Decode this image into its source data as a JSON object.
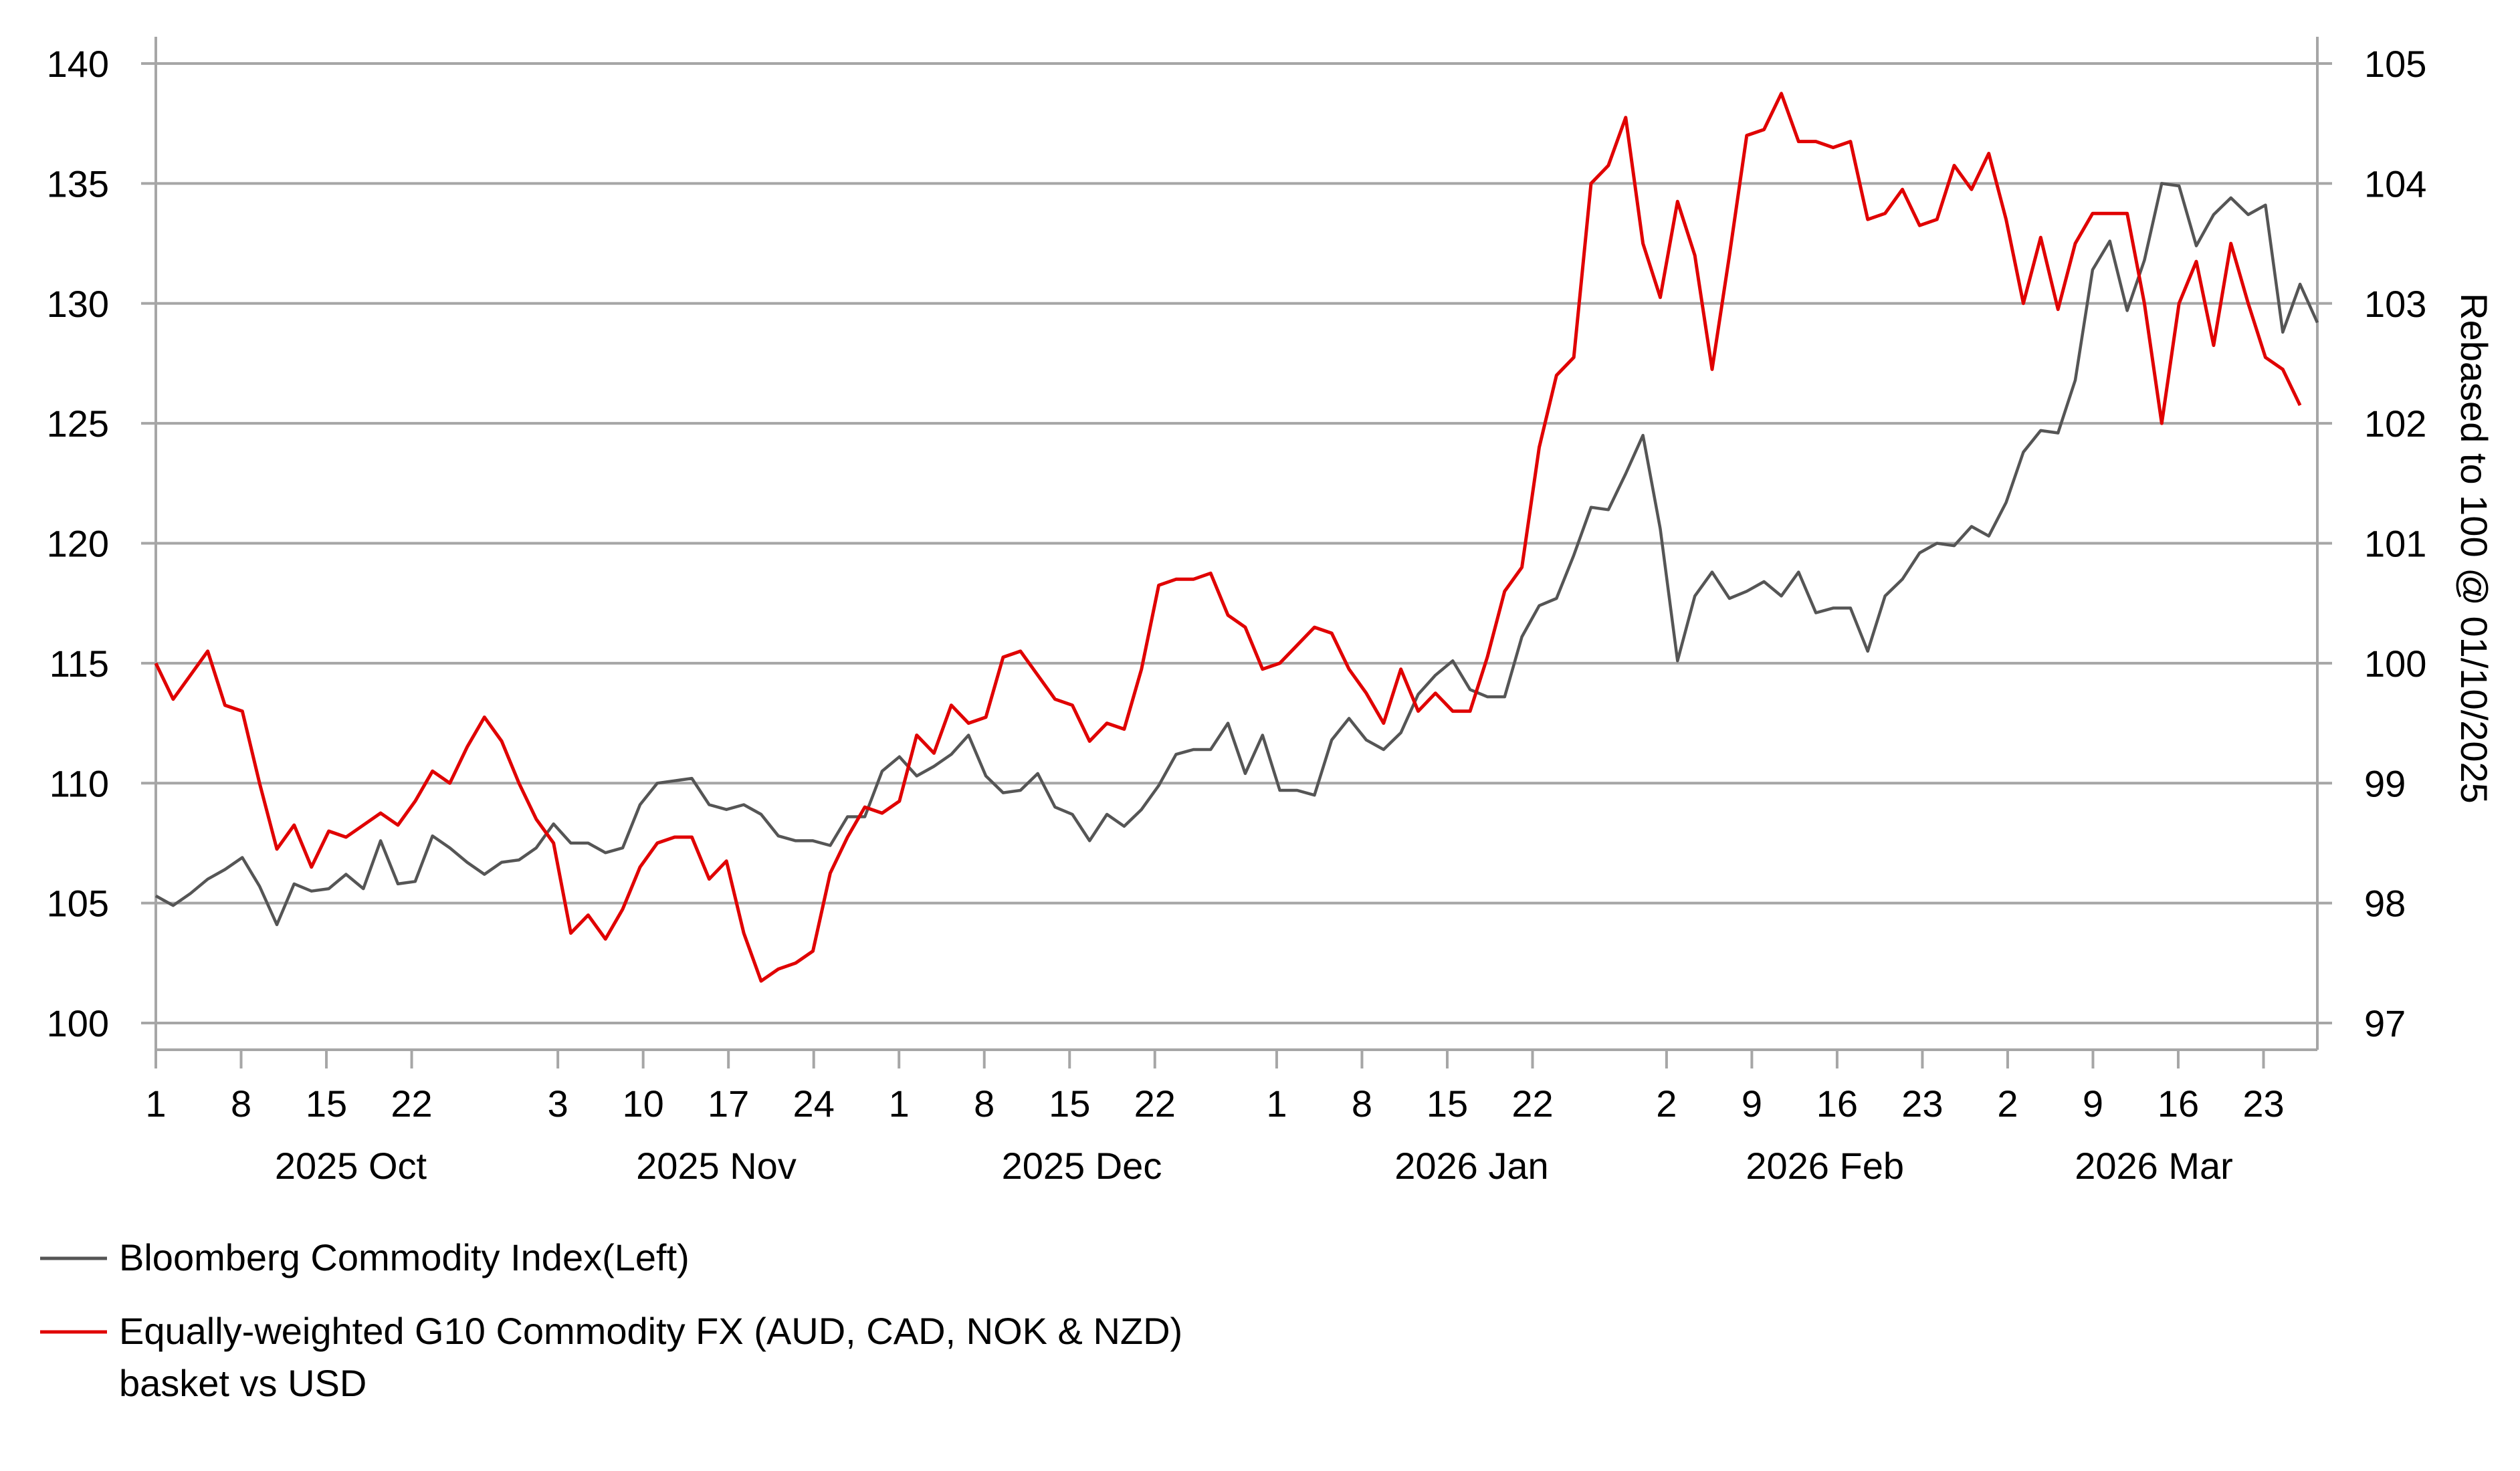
{
  "chart_data": {
    "type": "line",
    "title": "",
    "x_range": [
      "2025-10-01",
      "2026-03-26"
    ],
    "y_left": {
      "min": 100,
      "max": 140,
      "ticks": [
        "140",
        "135",
        "130",
        "125",
        "120",
        "115",
        "110",
        "105",
        "100"
      ],
      "grid": true
    },
    "y_right": {
      "label": "Rebased to 100 @ 01/10/2025",
      "min": 97,
      "max": 105,
      "ticks": [
        "105",
        "104",
        "103",
        "102",
        "101",
        "100",
        "99",
        "98",
        "97"
      ]
    },
    "x_ticks": [
      {
        "label": "1",
        "day": 0
      },
      {
        "label": "8",
        "day": 7
      },
      {
        "label": "15",
        "day": 14
      },
      {
        "label": "22",
        "day": 21
      },
      {
        "label": "3",
        "day": 33
      },
      {
        "label": "10",
        "day": 40
      },
      {
        "label": "17",
        "day": 47
      },
      {
        "label": "24",
        "day": 54
      },
      {
        "label": "1",
        "day": 61
      },
      {
        "label": "8",
        "day": 68
      },
      {
        "label": "15",
        "day": 75
      },
      {
        "label": "22",
        "day": 82
      },
      {
        "label": "1",
        "day": 92
      },
      {
        "label": "8",
        "day": 99
      },
      {
        "label": "15",
        "day": 106
      },
      {
        "label": "22",
        "day": 113
      },
      {
        "label": "2",
        "day": 124
      },
      {
        "label": "9",
        "day": 131
      },
      {
        "label": "16",
        "day": 138
      },
      {
        "label": "23",
        "day": 145
      },
      {
        "label": "2",
        "day": 152
      },
      {
        "label": "9",
        "day": 159
      },
      {
        "label": "16",
        "day": 166
      },
      {
        "label": "23",
        "day": 173
      }
    ],
    "months": [
      {
        "label": "2025 Oct",
        "center_day": 16
      },
      {
        "label": "2025 Nov",
        "center_day": 46
      },
      {
        "label": "2025 Dec",
        "center_day": 76
      },
      {
        "label": "2026 Jan",
        "center_day": 108
      },
      {
        "label": "2026 Feb",
        "center_day": 137
      },
      {
        "label": "2026 Mar",
        "center_day": 164
      }
    ],
    "series": [
      {
        "name": "Bloomberg Commodity Index(Left)",
        "axis": "left",
        "color": "#555555",
        "points": [
          [
            0,
            105.3
          ],
          [
            2,
            104.9
          ],
          [
            4,
            105.4
          ],
          [
            6,
            106.0
          ],
          [
            8,
            106.4
          ],
          [
            10,
            106.9
          ],
          [
            12,
            105.7
          ],
          [
            14,
            104.1
          ],
          [
            16,
            105.8
          ],
          [
            18,
            105.5
          ],
          [
            20,
            105.6
          ],
          [
            22,
            106.2
          ],
          [
            24,
            105.6
          ],
          [
            26,
            107.6
          ],
          [
            28,
            105.8
          ],
          [
            30,
            105.9
          ],
          [
            32,
            107.8
          ],
          [
            34,
            107.3
          ],
          [
            36,
            106.7
          ],
          [
            38,
            106.2
          ],
          [
            40,
            106.7
          ],
          [
            42,
            106.8
          ],
          [
            44,
            107.3
          ],
          [
            46,
            108.3
          ],
          [
            48,
            107.5
          ],
          [
            50,
            107.5
          ],
          [
            52,
            107.1
          ],
          [
            54,
            107.3
          ],
          [
            56,
            109.1
          ],
          [
            58,
            110.0
          ],
          [
            60,
            110.1
          ],
          [
            62,
            110.2
          ],
          [
            64,
            109.1
          ],
          [
            66,
            108.9
          ],
          [
            68,
            109.1
          ],
          [
            70,
            108.7
          ],
          [
            72,
            107.8
          ],
          [
            74,
            107.6
          ],
          [
            76,
            107.6
          ],
          [
            78,
            107.4
          ],
          [
            80,
            108.6
          ],
          [
            82,
            108.6
          ],
          [
            84,
            110.5
          ],
          [
            86,
            111.1
          ],
          [
            88,
            110.3
          ],
          [
            90,
            110.7
          ],
          [
            92,
            111.2
          ],
          [
            94,
            112.0
          ],
          [
            96,
            110.3
          ],
          [
            98,
            109.6
          ],
          [
            100,
            109.7
          ],
          [
            102,
            110.4
          ],
          [
            104,
            109.0
          ],
          [
            106,
            108.7
          ],
          [
            108,
            107.6
          ],
          [
            110,
            108.7
          ],
          [
            112,
            108.2
          ],
          [
            114,
            108.9
          ],
          [
            116,
            109.9
          ],
          [
            118,
            111.2
          ],
          [
            120,
            111.4
          ],
          [
            122,
            111.4
          ],
          [
            124,
            112.5
          ],
          [
            126,
            110.4
          ],
          [
            128,
            112.0
          ],
          [
            130,
            109.7
          ],
          [
            132,
            109.7
          ],
          [
            134,
            109.5
          ],
          [
            136,
            111.8
          ],
          [
            138,
            112.7
          ],
          [
            140,
            111.8
          ],
          [
            142,
            111.4
          ],
          [
            144,
            112.1
          ],
          [
            146,
            113.7
          ],
          [
            148,
            114.5
          ],
          [
            150,
            115.1
          ],
          [
            152,
            113.9
          ],
          [
            154,
            113.6
          ],
          [
            156,
            113.6
          ],
          [
            158,
            116.1
          ],
          [
            160,
            117.4
          ],
          [
            162,
            117.7
          ],
          [
            164,
            119.5
          ],
          [
            166,
            121.5
          ],
          [
            168,
            121.4
          ],
          [
            170,
            122.9
          ],
          [
            172,
            124.5
          ],
          [
            174,
            120.6
          ],
          [
            176,
            115.1
          ],
          [
            178,
            117.8
          ],
          [
            180,
            118.8
          ],
          [
            182,
            117.7
          ],
          [
            184,
            118.0
          ],
          [
            186,
            118.4
          ],
          [
            188,
            117.8
          ],
          [
            190,
            118.8
          ],
          [
            192,
            117.1
          ],
          [
            194,
            117.3
          ],
          [
            196,
            117.3
          ],
          [
            198,
            115.5
          ],
          [
            200,
            117.8
          ],
          [
            202,
            118.5
          ],
          [
            204,
            119.6
          ],
          [
            206,
            120.0
          ],
          [
            208,
            119.9
          ],
          [
            210,
            120.7
          ],
          [
            212,
            120.3
          ],
          [
            214,
            121.7
          ],
          [
            216,
            123.8
          ],
          [
            218,
            124.7
          ],
          [
            220,
            124.6
          ],
          [
            222,
            126.8
          ],
          [
            224,
            131.4
          ],
          [
            226,
            132.6
          ],
          [
            228,
            129.7
          ],
          [
            230,
            131.8
          ],
          [
            232,
            135.0
          ],
          [
            234,
            134.9
          ],
          [
            236,
            132.4
          ],
          [
            238,
            133.7
          ],
          [
            240,
            134.4
          ],
          [
            242,
            133.7
          ],
          [
            244,
            134.1
          ],
          [
            246,
            128.8
          ],
          [
            248,
            130.8
          ],
          [
            250,
            129.2
          ]
        ]
      },
      {
        "name": "Equally-weighted G10 Commodity FX (AUD, CAD, NOK & NZD) basket vs USD",
        "axis": "right",
        "color": "#e00000",
        "points": [
          [
            0,
            100.0
          ],
          [
            2,
            99.7
          ],
          [
            4,
            99.9
          ],
          [
            6,
            100.1
          ],
          [
            8,
            99.65
          ],
          [
            10,
            99.6
          ],
          [
            12,
            99.0
          ],
          [
            14,
            98.45
          ],
          [
            16,
            98.65
          ],
          [
            18,
            98.3
          ],
          [
            20,
            98.6
          ],
          [
            22,
            98.55
          ],
          [
            24,
            98.65
          ],
          [
            26,
            98.75
          ],
          [
            28,
            98.65
          ],
          [
            30,
            98.85
          ],
          [
            32,
            99.1
          ],
          [
            34,
            99.0
          ],
          [
            36,
            99.3
          ],
          [
            38,
            99.55
          ],
          [
            40,
            99.35
          ],
          [
            42,
            99.0
          ],
          [
            44,
            98.7
          ],
          [
            46,
            98.5
          ],
          [
            48,
            97.75
          ],
          [
            50,
            97.9
          ],
          [
            52,
            97.7
          ],
          [
            54,
            97.95
          ],
          [
            56,
            98.3
          ],
          [
            58,
            98.5
          ],
          [
            60,
            98.55
          ],
          [
            62,
            98.55
          ],
          [
            64,
            98.2
          ],
          [
            66,
            98.35
          ],
          [
            68,
            97.75
          ],
          [
            70,
            97.35
          ],
          [
            72,
            97.45
          ],
          [
            74,
            97.5
          ],
          [
            76,
            97.6
          ],
          [
            78,
            98.25
          ],
          [
            80,
            98.55
          ],
          [
            82,
            98.8
          ],
          [
            84,
            98.75
          ],
          [
            86,
            98.85
          ],
          [
            88,
            99.4
          ],
          [
            90,
            99.25
          ],
          [
            92,
            99.65
          ],
          [
            94,
            99.5
          ],
          [
            96,
            99.55
          ],
          [
            98,
            100.05
          ],
          [
            100,
            100.1
          ],
          [
            102,
            99.9
          ],
          [
            104,
            99.7
          ],
          [
            106,
            99.65
          ],
          [
            108,
            99.35
          ],
          [
            110,
            99.5
          ],
          [
            112,
            99.45
          ],
          [
            114,
            99.95
          ],
          [
            116,
            100.65
          ],
          [
            118,
            100.7
          ],
          [
            120,
            100.7
          ],
          [
            122,
            100.75
          ],
          [
            124,
            100.4
          ],
          [
            126,
            100.3
          ],
          [
            128,
            99.95
          ],
          [
            130,
            100.0
          ],
          [
            132,
            100.15
          ],
          [
            134,
            100.3
          ],
          [
            136,
            100.25
          ],
          [
            138,
            99.95
          ],
          [
            140,
            99.75
          ],
          [
            142,
            99.5
          ],
          [
            144,
            99.95
          ],
          [
            146,
            99.6
          ],
          [
            148,
            99.75
          ],
          [
            150,
            99.6
          ],
          [
            152,
            99.6
          ],
          [
            154,
            100.05
          ],
          [
            156,
            100.6
          ],
          [
            158,
            100.8
          ],
          [
            160,
            101.8
          ],
          [
            162,
            102.4
          ],
          [
            164,
            102.55
          ],
          [
            166,
            104.0
          ],
          [
            168,
            104.15
          ],
          [
            170,
            104.55
          ],
          [
            172,
            103.5
          ],
          [
            174,
            103.05
          ],
          [
            176,
            103.85
          ],
          [
            178,
            103.4
          ],
          [
            180,
            102.45
          ],
          [
            182,
            103.4
          ],
          [
            184,
            104.4
          ],
          [
            186,
            104.45
          ],
          [
            188,
            104.75
          ],
          [
            190,
            104.35
          ],
          [
            192,
            104.35
          ],
          [
            194,
            104.3
          ],
          [
            196,
            104.35
          ],
          [
            198,
            103.7
          ],
          [
            200,
            103.75
          ],
          [
            202,
            103.95
          ],
          [
            204,
            103.65
          ],
          [
            206,
            103.7
          ],
          [
            208,
            104.15
          ],
          [
            210,
            103.95
          ],
          [
            212,
            104.25
          ],
          [
            214,
            103.7
          ],
          [
            216,
            103.0
          ],
          [
            218,
            103.55
          ],
          [
            220,
            102.95
          ],
          [
            222,
            103.5
          ],
          [
            224,
            103.75
          ],
          [
            226,
            103.75
          ],
          [
            228,
            103.75
          ],
          [
            230,
            103.0
          ],
          [
            232,
            102.0
          ],
          [
            234,
            103.0
          ],
          [
            236,
            103.35
          ],
          [
            238,
            102.65
          ],
          [
            240,
            103.5
          ],
          [
            242,
            103.0
          ],
          [
            244,
            102.55
          ],
          [
            246,
            102.45
          ],
          [
            248,
            102.15
          ]
        ]
      }
    ],
    "legend": {
      "position": "bottom-left",
      "entries": [
        {
          "lines": [
            "Bloomberg Commodity Index(Left)"
          ],
          "color": "#555555"
        },
        {
          "lines": [
            "Equally-weighted G10 Commodity FX (AUD, CAD, NOK & NZD)",
            "basket vs USD"
          ],
          "color": "#e00000"
        }
      ]
    },
    "colors": {
      "grid": "#a6a6a6",
      "axis": "#a6a6a6",
      "text": "#000000"
    }
  }
}
